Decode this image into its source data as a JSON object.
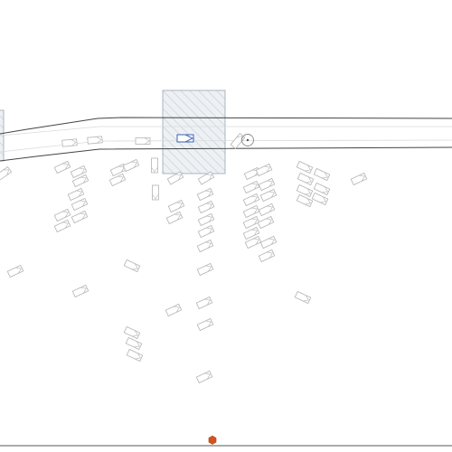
{
  "colors": {
    "background": "#ffffff",
    "road_edge": "#444444",
    "lane_line": "#d8d8d8",
    "crossing_fill": "#eef1f4",
    "crossing_stroke": "#9aa6b2",
    "vehicle_stroke": "#b4b4b4",
    "ego_vehicle": "#4a6fb8",
    "goal_marker": "#d4541b",
    "baseline": "#555555"
  },
  "icons": {
    "ego": "ego-vehicle-icon",
    "vehicle": "parked-vehicle-icon",
    "pedestrian": "pedestrian-icon",
    "goal": "goal-hexagon-icon"
  }
}
